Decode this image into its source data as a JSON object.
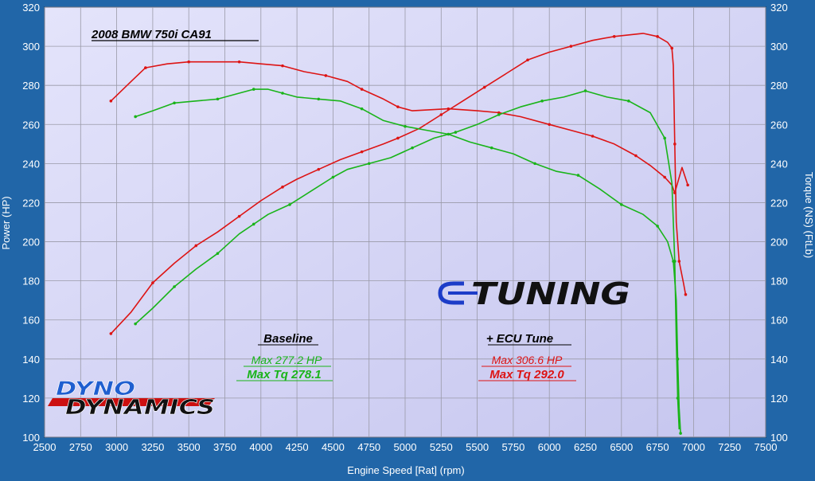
{
  "chart_data": {
    "type": "line",
    "title": "2008 BMW 750i CA91",
    "xlabel": "Engine Speed [Rat] (rpm)",
    "ylabel_left": "Power (HP)",
    "ylabel_right": "Torque (NS) (FtLb)",
    "xlim": [
      2500,
      7500
    ],
    "ylim": [
      100,
      320
    ],
    "x_ticks": [
      "2500",
      "2750",
      "3000",
      "3250",
      "3500",
      "3750",
      "4000",
      "4250",
      "4500",
      "4750",
      "5000",
      "5250",
      "5500",
      "5750",
      "6000",
      "6250",
      "6500",
      "6750",
      "7000",
      "7250",
      "7500"
    ],
    "y_ticks": [
      "100",
      "120",
      "140",
      "160",
      "180",
      "200",
      "220",
      "240",
      "260",
      "280",
      "300",
      "320"
    ],
    "grid": true,
    "annotations": {
      "baseline": {
        "heading": "Baseline",
        "max_hp": "Max 277.2 HP",
        "max_tq": "Max Tq 278.1",
        "color": "#19b419"
      },
      "tuned": {
        "heading": "+ ECU Tune",
        "max_hp": "Max 306.6 HP",
        "max_tq": "Max Tq 292.0",
        "color": "#dd1414"
      }
    },
    "logos": {
      "tuning": "TUNING",
      "dyno_top": "DYNO",
      "dyno_bottom": "DYNAMICS"
    },
    "series": [
      {
        "id": "tuned-power",
        "color": "#dd1414",
        "points": [
          [
            2960,
            153
          ],
          [
            3100,
            164
          ],
          [
            3250,
            179
          ],
          [
            3400,
            189
          ],
          [
            3550,
            198
          ],
          [
            3700,
            205
          ],
          [
            3850,
            213
          ],
          [
            4000,
            221
          ],
          [
            4150,
            228
          ],
          [
            4250,
            232
          ],
          [
            4400,
            237
          ],
          [
            4550,
            242
          ],
          [
            4700,
            246
          ],
          [
            4850,
            250
          ],
          [
            4950,
            253
          ],
          [
            5100,
            258
          ],
          [
            5250,
            265
          ],
          [
            5400,
            272
          ],
          [
            5550,
            279
          ],
          [
            5700,
            286
          ],
          [
            5850,
            293
          ],
          [
            6000,
            297
          ],
          [
            6150,
            300
          ],
          [
            6300,
            303
          ],
          [
            6450,
            305
          ],
          [
            6650,
            306.6
          ],
          [
            6750,
            305
          ],
          [
            6820,
            302
          ],
          [
            6850,
            299
          ],
          [
            6860,
            290
          ],
          [
            6870,
            250
          ],
          [
            6880,
            210
          ],
          [
            6900,
            190
          ],
          [
            6930,
            179
          ],
          [
            6945,
            173
          ]
        ]
      },
      {
        "id": "tuned-torque",
        "color": "#dd1414",
        "points": [
          [
            2960,
            272
          ],
          [
            3100,
            282
          ],
          [
            3200,
            289
          ],
          [
            3350,
            291
          ],
          [
            3500,
            292
          ],
          [
            3700,
            292
          ],
          [
            3850,
            292
          ],
          [
            4000,
            291
          ],
          [
            4150,
            290
          ],
          [
            4300,
            287
          ],
          [
            4450,
            285
          ],
          [
            4600,
            282
          ],
          [
            4700,
            278
          ],
          [
            4850,
            273
          ],
          [
            4950,
            269
          ],
          [
            5050,
            267
          ],
          [
            5300,
            268
          ],
          [
            5500,
            267
          ],
          [
            5650,
            266
          ],
          [
            5800,
            264
          ],
          [
            6000,
            260
          ],
          [
            6150,
            257
          ],
          [
            6300,
            254
          ],
          [
            6450,
            250
          ],
          [
            6600,
            244
          ],
          [
            6700,
            239
          ],
          [
            6800,
            233
          ],
          [
            6850,
            229
          ],
          [
            6870,
            225
          ],
          [
            6920,
            238
          ],
          [
            6960,
            229
          ]
        ]
      },
      {
        "id": "baseline-power",
        "color": "#19b419",
        "points": [
          [
            3130,
            158
          ],
          [
            3250,
            166
          ],
          [
            3400,
            177
          ],
          [
            3550,
            186
          ],
          [
            3700,
            194
          ],
          [
            3850,
            204
          ],
          [
            3950,
            209
          ],
          [
            4050,
            214
          ],
          [
            4200,
            219
          ],
          [
            4350,
            226
          ],
          [
            4500,
            233
          ],
          [
            4600,
            237
          ],
          [
            4750,
            240
          ],
          [
            4900,
            243
          ],
          [
            5050,
            248
          ],
          [
            5200,
            253
          ],
          [
            5350,
            256
          ],
          [
            5500,
            260
          ],
          [
            5650,
            265
          ],
          [
            5800,
            269
          ],
          [
            5950,
            272
          ],
          [
            6100,
            274
          ],
          [
            6250,
            277.2
          ],
          [
            6400,
            274
          ],
          [
            6550,
            272
          ],
          [
            6700,
            266
          ],
          [
            6800,
            253
          ],
          [
            6850,
            230
          ],
          [
            6870,
            190
          ],
          [
            6880,
            150
          ],
          [
            6890,
            120
          ],
          [
            6900,
            104
          ]
        ]
      },
      {
        "id": "baseline-torque",
        "color": "#19b419",
        "points": [
          [
            3130,
            264
          ],
          [
            3250,
            267
          ],
          [
            3400,
            271
          ],
          [
            3550,
            272
          ],
          [
            3700,
            273
          ],
          [
            3850,
            276
          ],
          [
            3950,
            278
          ],
          [
            4050,
            278
          ],
          [
            4150,
            276
          ],
          [
            4250,
            274
          ],
          [
            4400,
            273
          ],
          [
            4550,
            272
          ],
          [
            4700,
            268
          ],
          [
            4850,
            262
          ],
          [
            5000,
            259
          ],
          [
            5150,
            257
          ],
          [
            5300,
            255
          ],
          [
            5450,
            251
          ],
          [
            5600,
            248
          ],
          [
            5750,
            245
          ],
          [
            5900,
            240
          ],
          [
            6050,
            236
          ],
          [
            6200,
            234
          ],
          [
            6350,
            227
          ],
          [
            6500,
            219
          ],
          [
            6650,
            214
          ],
          [
            6750,
            208
          ],
          [
            6820,
            200
          ],
          [
            6860,
            190
          ],
          [
            6880,
            170
          ],
          [
            6890,
            140
          ],
          [
            6900,
            115
          ],
          [
            6910,
            102
          ]
        ]
      }
    ]
  }
}
